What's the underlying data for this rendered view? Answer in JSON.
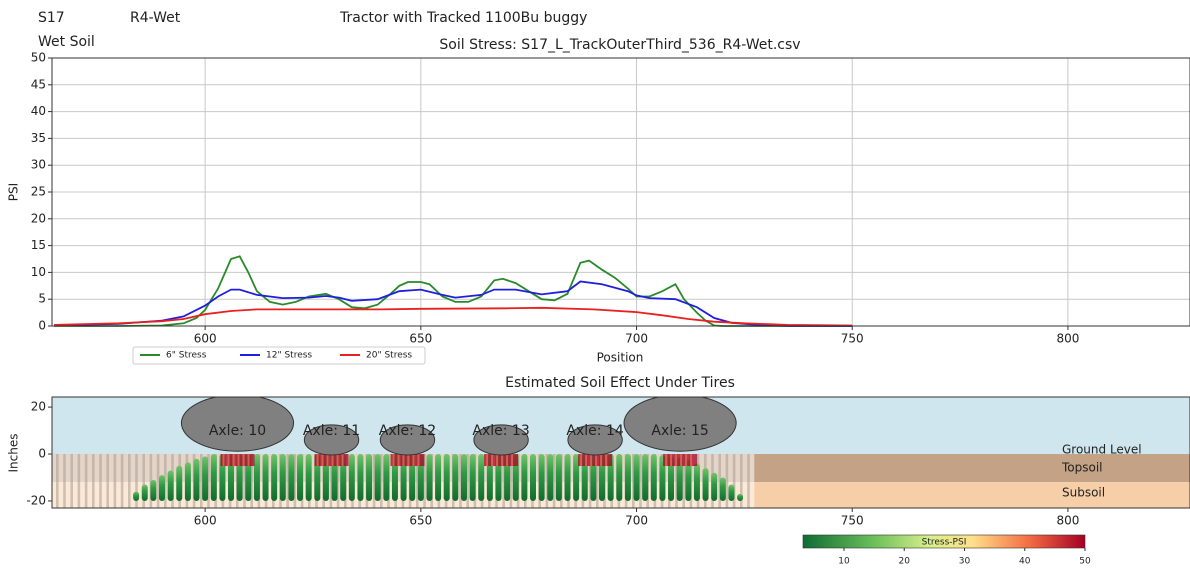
{
  "header": {
    "sample": "S17",
    "treatment": "R4-Wet",
    "equipment": "Tractor with Tracked 1100Bu buggy",
    "soil": "Wet Soil"
  },
  "chart_data": [
    {
      "type": "line",
      "title": "Soil Stress: S17_L_TrackOuterThird_536_R4-Wet.csv",
      "xlabel": "Position",
      "ylabel": "PSI",
      "xlim": [
        564.5,
        828.3
      ],
      "ylim": [
        0,
        50
      ],
      "xticks": [
        600,
        650,
        700,
        750,
        800
      ],
      "yticks": [
        0,
        5,
        10,
        15,
        20,
        25,
        30,
        35,
        40,
        45,
        50
      ],
      "grid": true,
      "legend": "below",
      "series": [
        {
          "name": "6\" Stress",
          "color": "#2a8a2a",
          "x": [
            565,
            580,
            590,
            595,
            598,
            600,
            603,
            606,
            608,
            610,
            612,
            615,
            618,
            621,
            624,
            628,
            631,
            634,
            637,
            640,
            643,
            645,
            647,
            650,
            652,
            655,
            658,
            661,
            664,
            667,
            669,
            672,
            675,
            678,
            681,
            684,
            687,
            689,
            692,
            695,
            698,
            700,
            703,
            706,
            709,
            711,
            714,
            716,
            718,
            720,
            750
          ],
          "values": [
            0,
            0,
            0.1,
            0.5,
            1.5,
            3,
            7,
            12.5,
            13,
            10,
            6.5,
            4.5,
            4,
            4.5,
            5.5,
            6,
            5,
            3.5,
            3.3,
            4,
            6,
            7.5,
            8.2,
            8.2,
            7.8,
            5.5,
            4.5,
            4.5,
            5.5,
            8.5,
            8.8,
            8,
            6.5,
            5,
            4.8,
            6,
            11.8,
            12.2,
            10.5,
            9,
            7,
            5.5,
            5.5,
            6.5,
            7.8,
            5,
            2.5,
            1,
            0.1,
            0,
            0
          ]
        },
        {
          "name": "12\" Stress",
          "color": "#1f1fe0",
          "x": [
            565,
            580,
            590,
            595,
            600,
            603,
            606,
            608,
            612,
            618,
            624,
            628,
            631,
            634,
            640,
            645,
            650,
            655,
            658,
            664,
            667,
            672,
            678,
            684,
            687,
            692,
            698,
            700,
            703,
            709,
            714,
            718,
            722,
            728,
            735,
            750
          ],
          "values": [
            0.1,
            0.4,
            1,
            1.8,
            3.8,
            5.5,
            6.8,
            6.8,
            5.8,
            5.2,
            5.3,
            5.6,
            5.3,
            4.7,
            5,
            6.5,
            6.8,
            5.8,
            5.3,
            5.8,
            6.8,
            6.8,
            5.9,
            6.5,
            8.3,
            7.8,
            6.5,
            5.7,
            5.2,
            5,
            3.5,
            1.5,
            0.6,
            0.2,
            0,
            0
          ]
        },
        {
          "name": "20\" Stress",
          "color": "#e8201f",
          "x": [
            565,
            580,
            590,
            595,
            600,
            606,
            612,
            620,
            640,
            650,
            670,
            678,
            690,
            700,
            706,
            712,
            718,
            725,
            735,
            750
          ],
          "values": [
            0.2,
            0.5,
            0.9,
            1.3,
            2.2,
            2.8,
            3.1,
            3.1,
            3.1,
            3.2,
            3.3,
            3.4,
            3.1,
            2.6,
            2,
            1.3,
            0.8,
            0.5,
            0.2,
            0.1
          ]
        }
      ]
    },
    {
      "type": "soil",
      "title": "Estimated Soil Effect Under Tires",
      "ylabel": "Inches",
      "xlim": [
        564.5,
        828.3
      ],
      "ylim": [
        -23,
        24.3
      ],
      "xticks": [
        600,
        650,
        700,
        750,
        800
      ],
      "yticks": [
        -20,
        0,
        20
      ],
      "layers": {
        "ground": "Ground Level",
        "topsoil": "Topsoil",
        "subsoil": "Subsoil",
        "topsoil_bottom": -12,
        "boundary": 727.3
      },
      "columns": {
        "bottom": -20,
        "x": [
          584,
          586,
          588,
          590,
          592,
          594,
          596,
          598,
          600,
          602,
          604,
          606,
          608,
          610,
          612,
          614,
          616,
          618,
          620,
          622,
          624,
          626,
          628,
          630,
          632,
          634,
          636,
          638,
          640,
          642,
          644,
          646,
          648,
          650,
          652,
          654,
          656,
          658,
          660,
          662,
          664,
          666,
          668,
          670,
          672,
          674,
          676,
          678,
          680,
          682,
          684,
          686,
          688,
          690,
          692,
          694,
          696,
          698,
          700,
          702,
          704,
          706,
          708,
          710,
          712,
          714,
          716,
          718,
          720,
          722,
          724
        ],
        "top": [
          -16,
          -13,
          -11,
          -9,
          -7,
          -5,
          -3.5,
          -2,
          -1,
          0,
          0,
          0,
          0,
          0,
          0,
          0,
          0,
          0,
          0,
          0,
          0,
          0,
          0,
          0,
          0,
          0,
          0,
          0,
          0,
          0,
          0,
          0,
          0,
          0,
          0,
          0,
          0,
          0,
          0,
          0,
          0,
          0,
          0,
          0,
          0,
          0,
          0,
          0,
          0,
          0,
          0,
          0,
          0,
          0,
          0,
          0,
          0,
          0,
          0,
          0,
          0,
          -0.5,
          -1,
          -1.5,
          -2.5,
          -4,
          -6,
          -8,
          -10,
          -13,
          -17
        ]
      },
      "axles": [
        {
          "label": "Axle: 10",
          "x": 607.5,
          "y": 13.2,
          "rx": 13,
          "ry": 12
        },
        {
          "label": "Axle: 11",
          "x": 629.3,
          "y": 6,
          "rx": 6.3,
          "ry": 6.4
        },
        {
          "label": "Axle: 12",
          "x": 646.9,
          "y": 6,
          "rx": 6.3,
          "ry": 6.4
        },
        {
          "label": "Axle: 13",
          "x": 668.6,
          "y": 6,
          "rx": 6.3,
          "ry": 6.4
        },
        {
          "label": "Axle: 14",
          "x": 690.4,
          "y": 6,
          "rx": 6.3,
          "ry": 6.4
        },
        {
          "label": "Axle: 15",
          "x": 710.1,
          "y": 13.2,
          "rx": 13,
          "ry": 12
        }
      ],
      "colorbar": {
        "label": "Stress-PSI",
        "lim": [
          3.2,
          50
        ],
        "ticks": [
          10,
          20,
          30,
          40,
          50
        ]
      }
    }
  ]
}
